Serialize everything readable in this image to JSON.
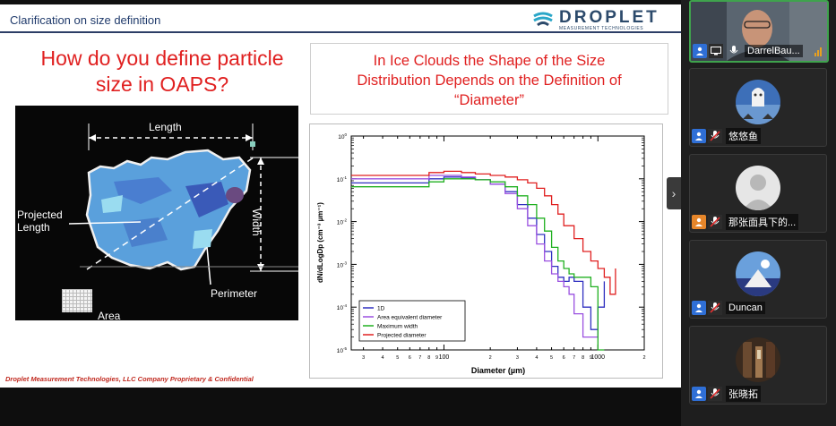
{
  "slide": {
    "title": "Clarification on size definition",
    "logo": {
      "name": "DROPLET",
      "tagline": "MEASUREMENT TECHNOLOGIES"
    },
    "left_heading": [
      "How do you define particle",
      "size in OAPS?"
    ],
    "right_heading": [
      "In Ice Clouds the Shape of the Size",
      "Distribution Depends on the Definition of",
      "“Diameter”"
    ],
    "particle_labels": {
      "length": "Length",
      "width": "Width",
      "projected_length": [
        "Projected",
        "Length"
      ],
      "perimeter": "Perimeter",
      "area": "Area"
    },
    "footer": "Droplet Measurement Technologies, LLC Company Proprietary & Confidential"
  },
  "chart_data": {
    "type": "line",
    "xlabel": "Diameter (µm)",
    "ylabel": "dN/dLogDp (cm⁻³ µm⁻¹)",
    "x_scale": "log",
    "y_scale": "log",
    "xlim": [
      25,
      2000
    ],
    "ylim": [
      1e-05,
      1
    ],
    "x_major_ticks": [
      {
        "v": 100,
        "label": "100"
      },
      {
        "v": 1000,
        "label": "1000"
      }
    ],
    "x_minor_ticks": [
      {
        "v": 30,
        "label": "3"
      },
      {
        "v": 40,
        "label": "4"
      },
      {
        "v": 50,
        "label": "5"
      },
      {
        "v": 60,
        "label": "6"
      },
      {
        "v": 70,
        "label": "7"
      },
      {
        "v": 80,
        "label": "8"
      },
      {
        "v": 90,
        "label": "9"
      },
      {
        "v": 200,
        "label": "2"
      },
      {
        "v": 300,
        "label": "3"
      },
      {
        "v": 400,
        "label": "4"
      },
      {
        "v": 500,
        "label": "5"
      },
      {
        "v": 600,
        "label": "6"
      },
      {
        "v": 700,
        "label": "7"
      },
      {
        "v": 800,
        "label": "8"
      },
      {
        "v": 900,
        "label": "9"
      },
      {
        "v": 2000,
        "label": "2"
      }
    ],
    "y_ticks": [
      {
        "v": 1,
        "base": "10",
        "exp": "0"
      },
      {
        "v": 0.1,
        "base": "10",
        "exp": "-1"
      },
      {
        "v": 0.01,
        "base": "10",
        "exp": "-2"
      },
      {
        "v": 0.001,
        "base": "10",
        "exp": "-3"
      },
      {
        "v": 0.0001,
        "base": "10",
        "exp": "-4"
      },
      {
        "v": 1e-05,
        "base": "10",
        "exp": "-5"
      }
    ],
    "series": [
      {
        "name": "1D",
        "color": "#3030c0",
        "x": [
          25,
          60,
          80,
          100,
          130,
          160,
          200,
          250,
          300,
          350,
          400,
          450,
          500,
          550,
          600,
          650,
          700,
          800,
          900,
          1000,
          1100
        ],
        "y": [
          0.08,
          0.08,
          0.1,
          0.11,
          0.105,
          0.095,
          0.075,
          0.05,
          0.025,
          0.012,
          0.005,
          0.002,
          0.0009,
          0.0005,
          0.0004,
          0.0005,
          0.0004,
          0.0001,
          3e-05,
          0.0001,
          0.0004
        ]
      },
      {
        "name": "Area equivalent diameter",
        "color": "#9a50e0",
        "x": [
          25,
          60,
          80,
          100,
          130,
          160,
          200,
          250,
          300,
          350,
          400,
          450,
          500,
          550,
          600,
          650,
          700,
          800,
          900,
          1000
        ],
        "y": [
          0.1,
          0.1,
          0.12,
          0.12,
          0.11,
          0.095,
          0.075,
          0.045,
          0.02,
          0.008,
          0.003,
          0.0012,
          0.0006,
          0.0004,
          0.0003,
          0.0002,
          7e-05,
          2e-05,
          2e-05,
          4e-05
        ]
      },
      {
        "name": "Maximum width",
        "color": "#20b020",
        "x": [
          25,
          60,
          80,
          100,
          130,
          160,
          200,
          250,
          300,
          350,
          400,
          450,
          500,
          550,
          600,
          650,
          700,
          800,
          900,
          1000,
          1100
        ],
        "y": [
          0.065,
          0.065,
          0.085,
          0.1,
          0.1,
          0.095,
          0.085,
          0.065,
          0.04,
          0.025,
          0.012,
          0.006,
          0.0025,
          0.0012,
          0.0008,
          0.0006,
          0.0005,
          0.0005,
          0.0003,
          1e-05,
          1e-05
        ]
      },
      {
        "name": "Projected diameter",
        "color": "#e02020",
        "x": [
          25,
          60,
          80,
          100,
          130,
          160,
          200,
          250,
          300,
          350,
          400,
          450,
          500,
          550,
          600,
          700,
          800,
          900,
          1000,
          1100,
          1200,
          1300
        ],
        "y": [
          0.12,
          0.12,
          0.14,
          0.15,
          0.14,
          0.13,
          0.12,
          0.11,
          0.095,
          0.08,
          0.06,
          0.04,
          0.025,
          0.015,
          0.008,
          0.004,
          0.002,
          0.0012,
          0.0008,
          0.0005,
          0.0002,
          0.0008
        ]
      }
    ]
  },
  "participants": [
    {
      "name": "DarrelBau...",
      "active": true,
      "avatar": "video"
    },
    {
      "name": "悠悠鱼",
      "avatar": "cartoon"
    },
    {
      "name": "那张面具下的...",
      "avatar": "default"
    },
    {
      "name": "Duncan",
      "avatar": "photo"
    },
    {
      "name": "张晓拓",
      "avatar": "hallway"
    }
  ],
  "colors": {
    "title_red": "#e02020",
    "header_blue": "#1f3a6b",
    "host_border": "#3fa34d",
    "chip_blue": "#2f6fd6"
  }
}
